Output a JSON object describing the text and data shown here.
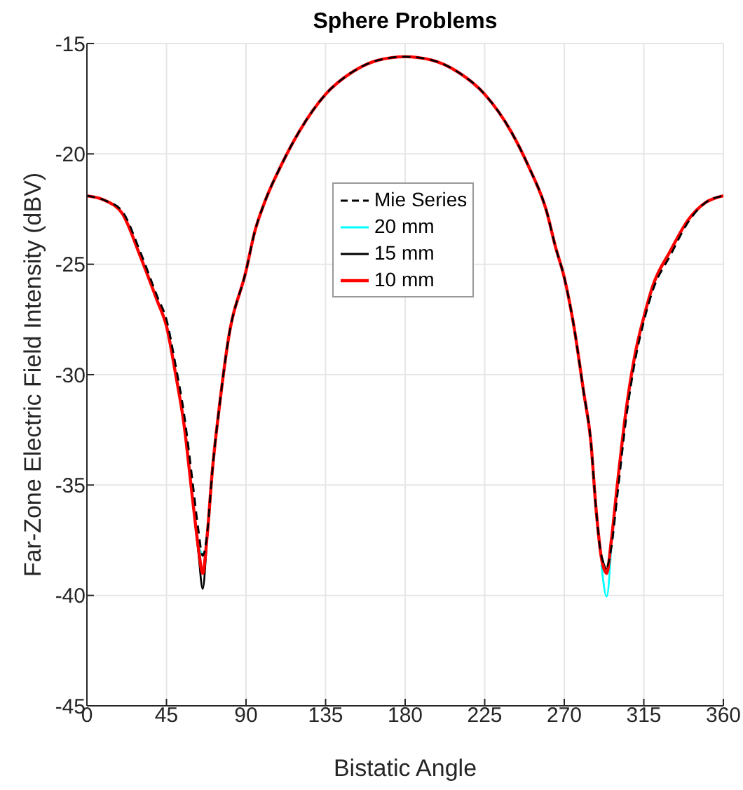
{
  "chart_data": {
    "type": "line",
    "title": "Sphere Problems",
    "xlabel": "Bistatic Angle",
    "ylabel": "Far-Zone Electric Field Intensity (dBV)",
    "x": [
      0,
      10,
      20,
      30,
      40,
      45,
      50,
      55,
      60,
      63,
      65.5,
      68,
      71,
      75,
      80,
      90,
      95,
      100,
      110,
      120,
      135,
      150,
      165,
      180,
      195,
      210,
      225,
      240,
      250,
      260,
      265,
      270,
      275,
      281,
      285,
      288,
      291,
      294,
      296.5,
      300,
      305,
      310,
      315,
      320,
      330,
      340,
      350,
      360
    ],
    "series": [
      {
        "name": "Mie Series",
        "color": "#000000",
        "line_style": "dashed",
        "values": [
          -21.9,
          -22.1,
          -22.6,
          -24.4,
          -26.5,
          -27.5,
          -29.5,
          -31.8,
          -35.0,
          -37.0,
          -38.2,
          -37.2,
          -34.3,
          -31.4,
          -28.4,
          -25.3,
          -23.5,
          -22.3,
          -20.5,
          -19.0,
          -17.3,
          -16.3,
          -15.75,
          -15.6,
          -15.75,
          -16.3,
          -17.3,
          -19.0,
          -20.6,
          -22.6,
          -24.2,
          -25.6,
          -27.6,
          -30.8,
          -33.0,
          -36.1,
          -38.2,
          -38.7,
          -37.9,
          -35.5,
          -32.0,
          -29.4,
          -27.6,
          -26.2,
          -24.6,
          -23.1,
          -22.2,
          -21.9
        ]
      },
      {
        "name": "20 mm",
        "color": "#00ffff",
        "line_style": "solid",
        "values": [
          null,
          null,
          null,
          null,
          null,
          null,
          null,
          null,
          null,
          -37.8,
          -38.2,
          null,
          null,
          null,
          null,
          null,
          null,
          null,
          null,
          null,
          null,
          null,
          null,
          null,
          null,
          null,
          null,
          null,
          null,
          null,
          null,
          null,
          null,
          null,
          null,
          null,
          -38.6,
          -40.05,
          -37.9,
          null,
          null,
          null,
          null,
          null,
          null,
          null,
          null,
          null
        ]
      },
      {
        "name": "15 mm",
        "color": "#000000",
        "line_style": "solid",
        "values": [
          null,
          null,
          null,
          null,
          null,
          null,
          null,
          null,
          -35.8,
          -38.0,
          -39.7,
          -37.4,
          -34.3,
          null,
          null,
          null,
          null,
          null,
          null,
          null,
          null,
          null,
          null,
          null,
          null,
          null,
          null,
          null,
          null,
          null,
          null,
          null,
          null,
          null,
          null,
          null,
          -38.2,
          -38.8,
          -37.6,
          null,
          null,
          null,
          null,
          null,
          null,
          null,
          null,
          null
        ]
      },
      {
        "name": "10 mm",
        "color": "#ff0000",
        "line_style": "solid",
        "values": [
          -21.9,
          -22.1,
          -22.7,
          -24.6,
          -26.7,
          -27.8,
          -29.9,
          -32.3,
          -35.8,
          -37.8,
          -39.0,
          -37.3,
          -34.3,
          -31.4,
          -28.4,
          -25.3,
          -23.5,
          -22.3,
          -20.5,
          -19.0,
          -17.3,
          -16.3,
          -15.75,
          -15.6,
          -15.75,
          -16.3,
          -17.3,
          -19.0,
          -20.6,
          -22.6,
          -24.2,
          -25.6,
          -27.6,
          -30.8,
          -33.0,
          -36.1,
          -38.3,
          -39.0,
          -37.6,
          -35.0,
          -31.6,
          -29.1,
          -27.4,
          -26.0,
          -24.4,
          -23.0,
          -22.2,
          -21.9
        ]
      }
    ],
    "xlim": [
      0,
      360
    ],
    "xticks": [
      0,
      45,
      90,
      135,
      180,
      225,
      270,
      315,
      360
    ],
    "ylim": [
      -45,
      -15
    ],
    "yticks": [
      -45,
      -40,
      -35,
      -30,
      -25,
      -20,
      -15
    ],
    "grid": true,
    "legend": "top center",
    "marker": "none"
  }
}
